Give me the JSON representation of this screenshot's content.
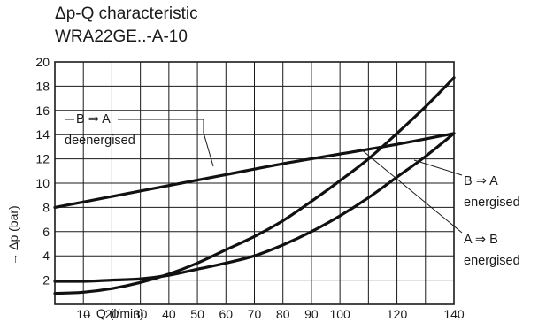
{
  "chart_data": {
    "type": "line",
    "title_line1": "Δp-Q characteristic",
    "title_line2": "WRA22GE..-A-10",
    "ylabel": "→  Δp (bar)",
    "xlabel": "→ Q (l/min)",
    "xlim": [
      0,
      140
    ],
    "ylim": [
      0,
      20
    ],
    "x_ticks": [
      10,
      20,
      30,
      40,
      50,
      60,
      70,
      80,
      90,
      100,
      120,
      140
    ],
    "y_ticks": [
      2,
      4,
      6,
      8,
      10,
      12,
      14,
      16,
      18,
      20
    ],
    "grid": true,
    "series": [
      {
        "name": "B ⇒ A deenergised",
        "x": [
          0,
          20,
          40,
          60,
          80,
          100,
          120,
          140
        ],
        "y": [
          8.0,
          8.9,
          9.8,
          10.7,
          11.6,
          12.4,
          13.2,
          14.1
        ]
      },
      {
        "name": "A ⇒ B energised",
        "x": [
          0,
          10,
          20,
          30,
          40,
          50,
          60,
          70,
          80,
          90,
          100,
          110,
          120,
          130,
          140
        ],
        "y": [
          0.9,
          1.0,
          1.3,
          1.8,
          2.5,
          3.4,
          4.5,
          5.6,
          6.9,
          8.5,
          10.2,
          12.0,
          14.1,
          16.3,
          18.7
        ]
      },
      {
        "name": "B ⇒ A energised",
        "x": [
          0,
          10,
          20,
          30,
          40,
          50,
          60,
          70,
          80,
          90,
          100,
          110,
          120,
          130,
          140
        ],
        "y": [
          1.9,
          1.9,
          2.0,
          2.1,
          2.4,
          2.9,
          3.4,
          4.0,
          4.9,
          6.0,
          7.3,
          8.8,
          10.5,
          12.2,
          14.1
        ]
      }
    ],
    "annotations": {
      "b_to_a_deenergised_line1": "B ⇒ A",
      "b_to_a_deenergised_line2": "deenergised",
      "b_to_a_energised_line1": "B ⇒ A",
      "b_to_a_energised_line2": "energised",
      "a_to_b_energised_line1": "A ⇒ B",
      "a_to_b_energised_line2": "energised"
    },
    "colors": {
      "curve": "#111111",
      "grid": "#1a1a1a",
      "text": "#1a1a1a"
    }
  }
}
